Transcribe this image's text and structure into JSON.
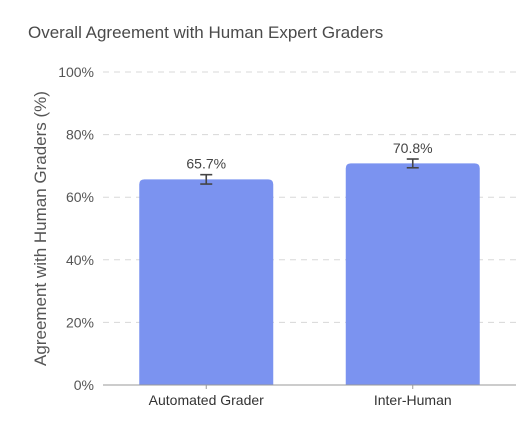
{
  "chart_data": {
    "type": "bar",
    "title": "Overall Agreement with Human Expert Graders",
    "ylabel": "Agreement with Human Graders (%)",
    "xlabel": "",
    "ylim": [
      0,
      100
    ],
    "yticks": [
      0,
      20,
      40,
      60,
      80,
      100
    ],
    "ytick_labels": [
      "0%",
      "20%",
      "40%",
      "60%",
      "80%",
      "100%"
    ],
    "grid": true,
    "categories": [
      "Automated Grader",
      "Inter-Human"
    ],
    "values": [
      65.7,
      70.8
    ],
    "errors": [
      1.5,
      1.4
    ],
    "value_labels": [
      "65.7%",
      "70.8%"
    ],
    "bar_color": "#7b93f0"
  }
}
